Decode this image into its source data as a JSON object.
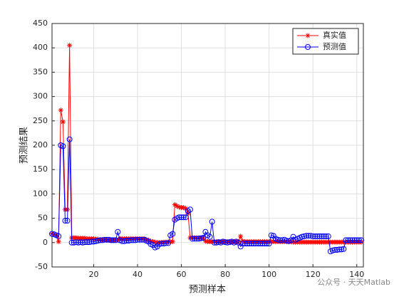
{
  "chart_data": {
    "type": "line",
    "xlabel": "预测样本",
    "ylabel": "预测结果",
    "watermark": "公众号 · 天天Matlab",
    "x": [
      1,
      2,
      3,
      4,
      5,
      6,
      7,
      8,
      9,
      10,
      11,
      12,
      13,
      14,
      15,
      16,
      17,
      18,
      19,
      20,
      21,
      22,
      23,
      24,
      25,
      26,
      27,
      28,
      29,
      30,
      31,
      32,
      33,
      34,
      35,
      36,
      37,
      38,
      39,
      40,
      41,
      42,
      43,
      44,
      45,
      46,
      47,
      48,
      49,
      50,
      51,
      52,
      53,
      54,
      55,
      56,
      57,
      58,
      59,
      60,
      61,
      62,
      63,
      64,
      65,
      66,
      67,
      68,
      69,
      70,
      71,
      72,
      73,
      74,
      75,
      76,
      77,
      78,
      79,
      80,
      81,
      82,
      83,
      84,
      85,
      86,
      87,
      88,
      89,
      90,
      91,
      92,
      93,
      94,
      95,
      96,
      97,
      98,
      99,
      100,
      101,
      102,
      103,
      104,
      105,
      106,
      107,
      108,
      109,
      110,
      111,
      112,
      113,
      114,
      115,
      116,
      117,
      118,
      119,
      120,
      121,
      122,
      123,
      124,
      125,
      126,
      127,
      128,
      129,
      130,
      131,
      132,
      133,
      134,
      135,
      136,
      137,
      138,
      139,
      140,
      141,
      142
    ],
    "series": [
      {
        "name": "真实值",
        "color": "#ff0000",
        "marker": "asterisk",
        "values": [
          18,
          17,
          15,
          2,
          272,
          248,
          68,
          68,
          405,
          10,
          10,
          10,
          9,
          9,
          9,
          9,
          8,
          8,
          8,
          8,
          7,
          7,
          6,
          6,
          6,
          5,
          5,
          5,
          5,
          5,
          5,
          8,
          8,
          8,
          8,
          8,
          8,
          8,
          8,
          8,
          8,
          8,
          8,
          6,
          5,
          3,
          2,
          1,
          0,
          0,
          0,
          1,
          1,
          1,
          2,
          2,
          78,
          75,
          73,
          72,
          72,
          70,
          60,
          10,
          10,
          10,
          10,
          10,
          10,
          10,
          3,
          2,
          2,
          2,
          2,
          2,
          2,
          2,
          2,
          2,
          2,
          2,
          2,
          2,
          2,
          2,
          13,
          3,
          2,
          2,
          2,
          2,
          2,
          2,
          2,
          2,
          2,
          2,
          2,
          2,
          2,
          2,
          2,
          2,
          2,
          2,
          2,
          2,
          2,
          2,
          1,
          1,
          1,
          1,
          1,
          1,
          1,
          1,
          1,
          1,
          1,
          1,
          1,
          1,
          1,
          1,
          1,
          1,
          1,
          1,
          1,
          1,
          1,
          1,
          1,
          1,
          1,
          1,
          1,
          1,
          1,
          1
        ]
      },
      {
        "name": "预测值",
        "color": "#0000ff",
        "marker": "circle",
        "values": [
          18,
          17,
          15,
          13,
          200,
          198,
          45,
          45,
          212,
          0,
          0,
          1,
          0,
          1,
          0,
          1,
          1,
          1,
          2,
          2,
          3,
          4,
          5,
          5,
          6,
          6,
          6,
          5,
          5,
          5,
          22,
          5,
          3,
          3,
          4,
          4,
          5,
          5,
          5,
          6,
          6,
          6,
          6,
          4,
          2,
          -3,
          -5,
          -10,
          -8,
          -3,
          -2,
          -2,
          -1,
          -1,
          15,
          18,
          47,
          50,
          52,
          52,
          52,
          52,
          65,
          68,
          8,
          8,
          8,
          8,
          9,
          10,
          22,
          15,
          12,
          43,
          0,
          0,
          1,
          0,
          2,
          1,
          0,
          1,
          2,
          0,
          2,
          0,
          -8,
          -2,
          -2,
          -2,
          -2,
          -2,
          -2,
          -2,
          -2,
          -2,
          -2,
          -2,
          -2,
          -2,
          15,
          14,
          8,
          6,
          5,
          5,
          6,
          4,
          3,
          5,
          12,
          6,
          8,
          10,
          12,
          13,
          14,
          14,
          14,
          13,
          13,
          13,
          13,
          13,
          13,
          13,
          13,
          -18,
          -16,
          -15,
          -15,
          -14,
          -14,
          -13,
          5,
          5,
          5,
          5,
          5,
          5,
          5,
          5
        ]
      }
    ],
    "xlim": [
      1,
      143
    ],
    "xticks": [
      20,
      40,
      60,
      80,
      100,
      120,
      140
    ],
    "ylim": [
      -50,
      450
    ],
    "yticks": [
      -50,
      0,
      50,
      100,
      150,
      200,
      250,
      300,
      350,
      400,
      450
    ],
    "grid": true,
    "legend": "northeast"
  }
}
